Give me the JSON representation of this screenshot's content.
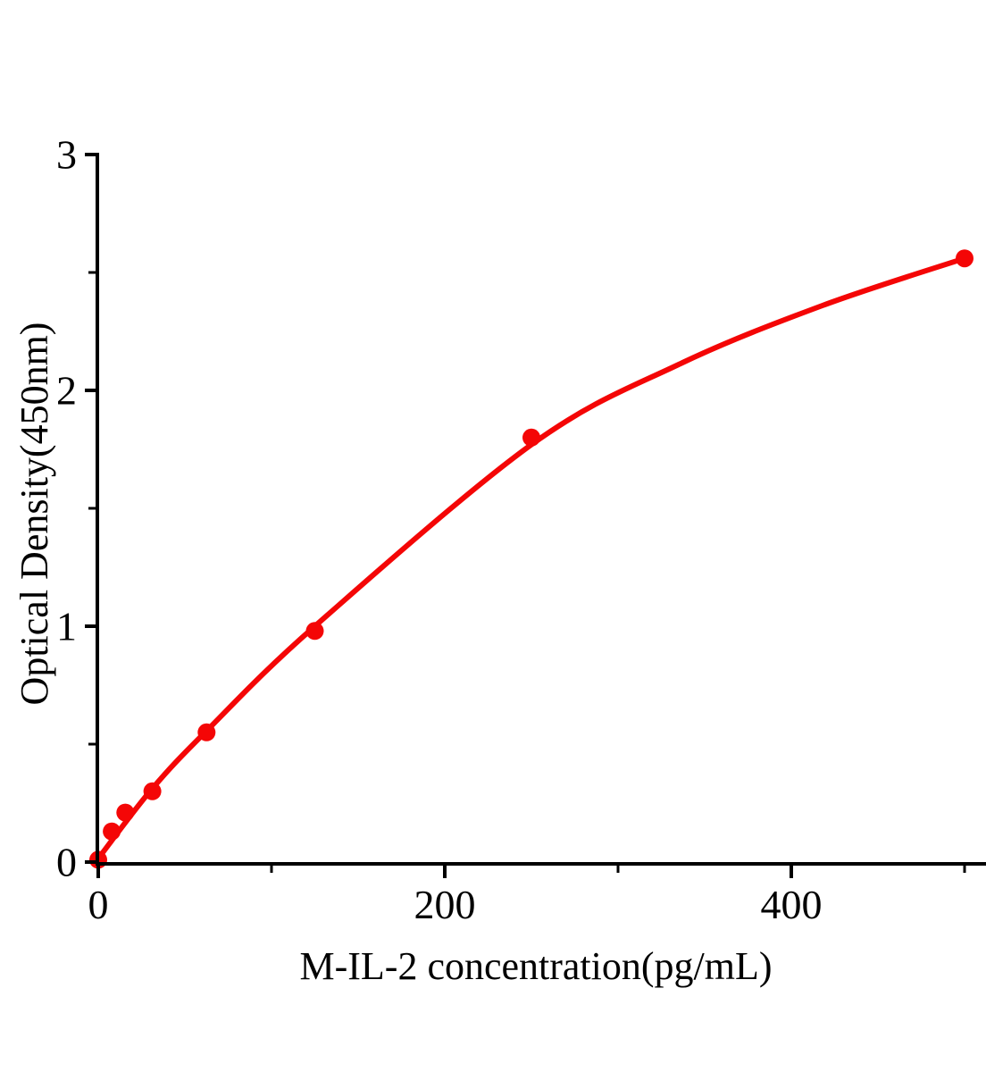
{
  "figure": {
    "background": "#ffffff",
    "description": "ELISA standard curve plot"
  },
  "chart_data": {
    "type": "scatter",
    "title": "",
    "xlabel": "M-IL-2 concentration(pg/mL)",
    "ylabel": "Optical Density(450nm)",
    "xlim": [
      0,
      512
    ],
    "ylim": [
      0,
      3
    ],
    "grid": false,
    "legend": "none",
    "colors": {
      "series": "#f40606",
      "axis": "#000000",
      "text": "#000000",
      "background": "#ffffff"
    },
    "axes": {
      "x_major_ticks": [
        {
          "value": 0,
          "label": "0"
        },
        {
          "value": 200,
          "label": "200"
        },
        {
          "value": 400,
          "label": "400"
        }
      ],
      "x_minor_ticks": [
        100,
        300,
        500
      ],
      "y_major_ticks": [
        {
          "value": 0,
          "label": "0"
        },
        {
          "value": 1,
          "label": "1"
        },
        {
          "value": 2,
          "label": "2"
        },
        {
          "value": 3,
          "label": "3"
        }
      ],
      "y_minor_ticks": [
        0.5,
        1.5,
        2.5
      ]
    },
    "series": [
      {
        "name": "fitted-curve",
        "kind": "line",
        "line_width": 6,
        "x": [
          0.5,
          31,
          63,
          125,
          250,
          335,
          418,
          500
        ],
        "y": [
          0.02,
          0.31,
          0.56,
          1.0,
          1.77,
          2.11,
          2.36,
          2.56
        ]
      },
      {
        "name": "standard-data-points",
        "kind": "scatter",
        "marker": "circle",
        "marker_size": 20,
        "x": [
          0,
          7.8,
          15.6,
          31.25,
          62.5,
          125,
          250,
          500
        ],
        "y": [
          0.01,
          0.13,
          0.21,
          0.3,
          0.55,
          0.98,
          1.8,
          2.56
        ]
      }
    ]
  }
}
